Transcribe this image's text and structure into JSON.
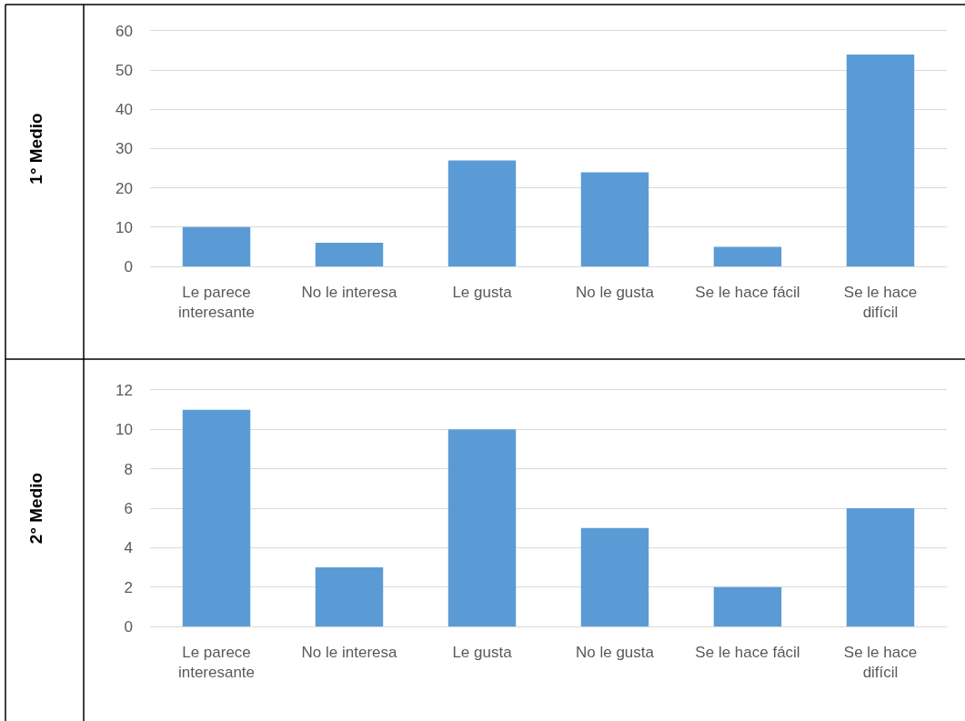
{
  "chart_data": [
    {
      "type": "bar",
      "ylabel": "1° Medio",
      "categories": [
        "Le parece interesante",
        "No le interesa",
        "Le gusta",
        "No le gusta",
        "Se le hace fácil",
        "Se le hace difícil"
      ],
      "values": [
        10,
        6,
        27,
        24,
        5,
        54
      ],
      "color": "#5b9bd5",
      "ylim": [
        0,
        60
      ],
      "yticks": [
        0,
        10,
        20,
        30,
        40,
        50,
        60
      ],
      "grid": "y"
    },
    {
      "type": "bar",
      "ylabel": "2° Medio",
      "categories": [
        "Le parece interesante",
        "No le interesa",
        "Le gusta",
        "No le gusta",
        "Se le hace fácil",
        "Se le hace difícil"
      ],
      "values": [
        11,
        3,
        10,
        5,
        2,
        6
      ],
      "color": "#5b9bd5",
      "ylim": [
        0,
        12
      ],
      "yticks": [
        0,
        2,
        4,
        6,
        8,
        10,
        12
      ],
      "grid": "y"
    }
  ]
}
